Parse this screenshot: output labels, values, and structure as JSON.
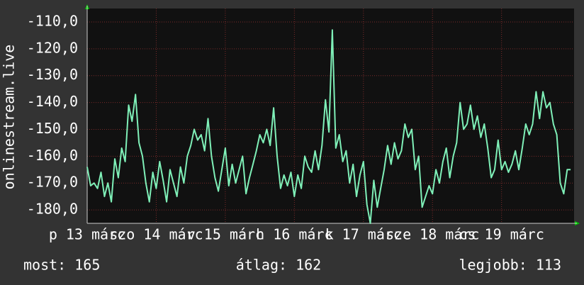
{
  "chart_data": {
    "type": "line",
    "y_label": "onlinestream.live",
    "color": "#7ff0b8",
    "grid": true,
    "xlim": [
      13,
      20.05
    ],
    "ylim": [
      -185,
      -105
    ],
    "xticks": [
      {
        "value": 13,
        "label": "p 13 márc"
      },
      {
        "value": 14,
        "label": "szo 14 márc"
      },
      {
        "value": 15,
        "label": "v 15 márc"
      },
      {
        "value": 16,
        "label": "h 16 márc"
      },
      {
        "value": 17,
        "label": "k 17 márc"
      },
      {
        "value": 18,
        "label": "sze 18 márc"
      },
      {
        "value": 19,
        "label": "cs 19 márc"
      }
    ],
    "yticks": [
      {
        "value": -110,
        "label": "-110,0"
      },
      {
        "value": -120,
        "label": "-120,0"
      },
      {
        "value": -130,
        "label": "-130,0"
      },
      {
        "value": -140,
        "label": "-140,0"
      },
      {
        "value": -150,
        "label": "-150,0"
      },
      {
        "value": -160,
        "label": "-160,0"
      },
      {
        "value": -170,
        "label": "-170,0"
      },
      {
        "value": -180,
        "label": "-180,0"
      }
    ],
    "x": [
      13,
      13.05,
      13.1,
      13.15,
      13.2,
      13.25,
      13.3,
      13.35,
      13.4,
      13.45,
      13.5,
      13.55,
      13.6,
      13.65,
      13.7,
      13.75,
      13.8,
      13.85,
      13.9,
      13.95,
      14,
      14.05,
      14.1,
      14.15,
      14.2,
      14.25,
      14.3,
      14.35,
      14.4,
      14.45,
      14.5,
      14.55,
      14.6,
      14.65,
      14.7,
      14.75,
      14.8,
      14.85,
      14.9,
      14.95,
      15,
      15.05,
      15.1,
      15.15,
      15.2,
      15.25,
      15.3,
      15.35,
      15.4,
      15.45,
      15.5,
      15.55,
      15.6,
      15.65,
      15.7,
      15.75,
      15.8,
      15.85,
      15.9,
      15.95,
      16,
      16.05,
      16.1,
      16.15,
      16.2,
      16.25,
      16.3,
      16.35,
      16.4,
      16.45,
      16.5,
      16.55,
      16.6,
      16.65,
      16.7,
      16.75,
      16.8,
      16.85,
      16.9,
      16.95,
      17,
      17.05,
      17.1,
      17.15,
      17.2,
      17.25,
      17.3,
      17.35,
      17.4,
      17.45,
      17.5,
      17.55,
      17.6,
      17.65,
      17.7,
      17.75,
      17.8,
      17.85,
      17.9,
      17.95,
      18,
      18.05,
      18.1,
      18.15,
      18.2,
      18.25,
      18.3,
      18.35,
      18.4,
      18.45,
      18.5,
      18.55,
      18.6,
      18.65,
      18.7,
      18.75,
      18.8,
      18.85,
      18.9,
      18.95,
      19,
      19.05,
      19.1,
      19.15,
      19.2,
      19.25,
      19.3,
      19.35,
      19.4,
      19.45,
      19.5,
      19.55,
      19.6,
      19.65,
      19.7,
      19.75,
      19.8,
      19.85,
      19.9,
      19.95,
      20
    ],
    "values": [
      -164,
      -171,
      -170,
      -172,
      -166,
      -175,
      -170,
      -177,
      -161,
      -168,
      -157,
      -162,
      -141,
      -147,
      -137,
      -155,
      -160,
      -170,
      -177,
      -166,
      -172,
      -162,
      -169,
      -177,
      -165,
      -170,
      -175,
      -164,
      -170,
      -160,
      -156,
      -150,
      -154,
      -152,
      -158,
      -146,
      -160,
      -168,
      -173,
      -165,
      -157,
      -171,
      -163,
      -170,
      -165,
      -160,
      -174,
      -168,
      -163,
      -158,
      -152,
      -155,
      -150,
      -156,
      -142,
      -160,
      -172,
      -167,
      -171,
      -166,
      -175,
      -167,
      -172,
      -160,
      -164,
      -166,
      -158,
      -165,
      -156,
      -139,
      -151,
      -113,
      -157,
      -152,
      -162,
      -158,
      -170,
      -163,
      -175,
      -167,
      -162,
      -178,
      -185,
      -169,
      -179,
      -172,
      -165,
      -156,
      -163,
      -155,
      -161,
      -158,
      -148,
      -153,
      -150,
      -165,
      -160,
      -179,
      -175,
      -171,
      -174,
      -165,
      -170,
      -162,
      -157,
      -168,
      -160,
      -155,
      -140,
      -150,
      -148,
      -141,
      -150,
      -145,
      -153,
      -148,
      -157,
      -168,
      -165,
      -154,
      -165,
      -162,
      -166,
      -163,
      -158,
      -165,
      -157,
      -148,
      -152,
      -148,
      -136,
      -146,
      -136,
      -142,
      -140,
      -148,
      -152,
      -170,
      -174,
      -165,
      -165
    ],
    "stats": [
      "most: 165",
      "átlag: 162",
      "legjobb: 113"
    ]
  }
}
